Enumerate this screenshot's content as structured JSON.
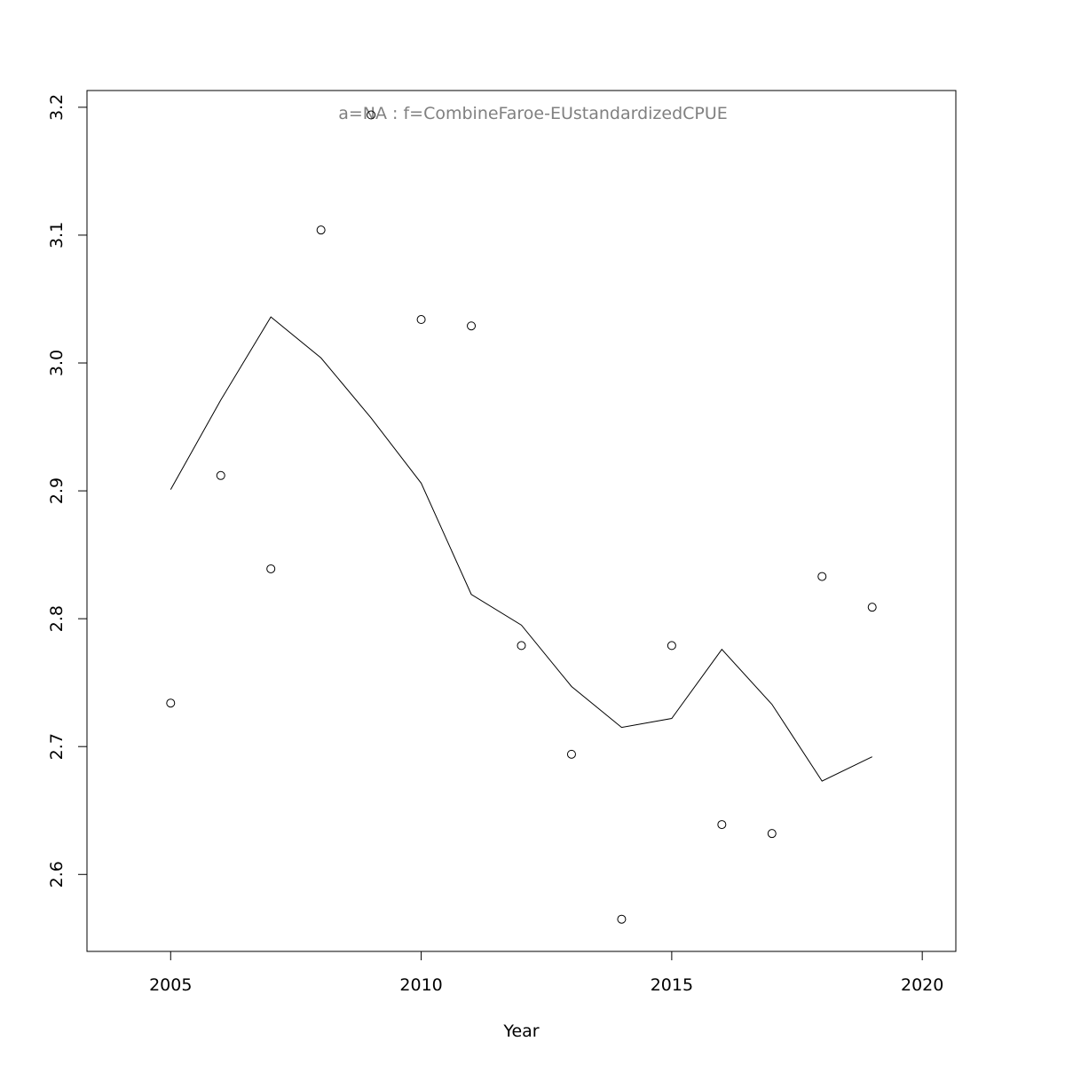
{
  "chart_data": {
    "type": "scatter",
    "xlabel": "Year",
    "ylabel": "",
    "annotation": "a=NA  :  f=CombineFaroe-EUstandardizedCPUE",
    "annotation_color": "#808080",
    "line_color": "#000000",
    "point_color": "#000000",
    "xlim": [
      2003.33,
      2020.67
    ],
    "ylim": [
      2.5398,
      3.2131
    ],
    "x_ticks": [
      2005,
      2010,
      2015,
      2020
    ],
    "x_tick_labels": [
      "2005",
      "2010",
      "2015",
      "2020"
    ],
    "y_ticks": [
      2.6,
      2.7,
      2.8,
      2.9,
      3.0,
      3.1,
      3.2
    ],
    "y_tick_labels": [
      "2.6",
      "2.7",
      "2.8",
      "2.9",
      "3.0",
      "3.1",
      "3.2"
    ],
    "grid": false,
    "series": [
      {
        "type": "points",
        "x": [
          2005,
          2006,
          2007,
          2008,
          2009,
          2010,
          2011,
          2012,
          2013,
          2014,
          2015,
          2016,
          2017,
          2018,
          2019
        ],
        "y": [
          2.734,
          2.912,
          2.839,
          3.104,
          3.194,
          3.034,
          3.029,
          2.779,
          2.694,
          2.565,
          2.779,
          2.639,
          2.632,
          2.833,
          2.809
        ]
      },
      {
        "type": "line",
        "x": [
          2005,
          2006,
          2007,
          2008,
          2009,
          2010,
          2011,
          2012,
          2013,
          2014,
          2015,
          2016,
          2017,
          2018,
          2019
        ],
        "y": [
          2.901,
          2.971,
          3.036,
          3.004,
          2.957,
          2.906,
          2.819,
          2.795,
          2.747,
          2.715,
          2.722,
          2.776,
          2.733,
          2.673,
          2.692
        ]
      }
    ]
  }
}
